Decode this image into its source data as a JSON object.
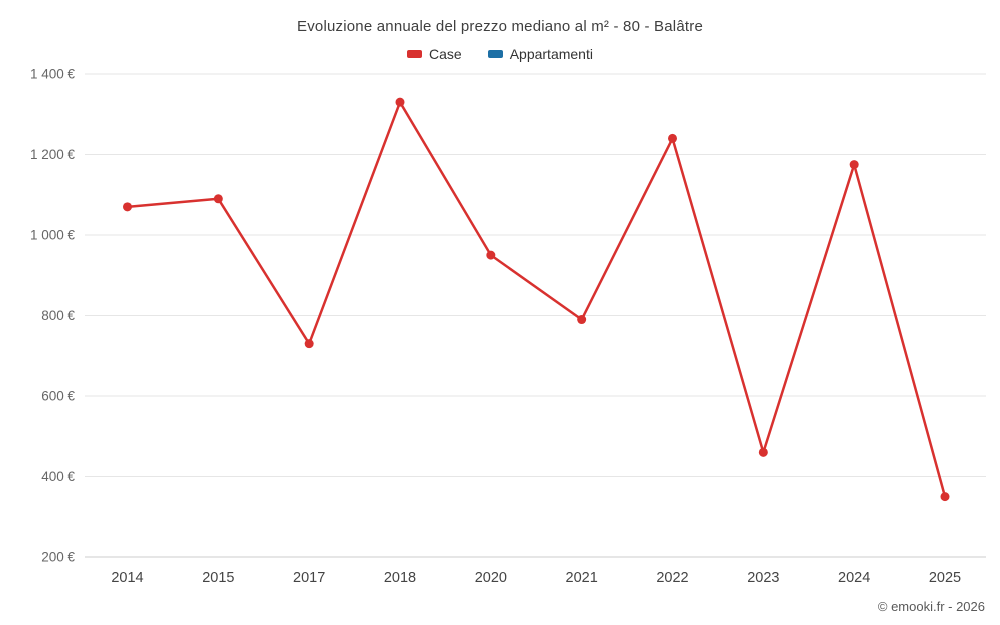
{
  "title": "Evoluzione annuale del prezzo mediano al m² - 80 - Balâtre",
  "legend": [
    {
      "label": "Case",
      "color": "#d8312f"
    },
    {
      "label": "Appartamenti",
      "color": "#1d6fa5"
    }
  ],
  "copyright": "© emooki.fr - 2026",
  "chart_data": {
    "type": "line",
    "title": "Evoluzione annuale del prezzo mediano al m² - 80 - Balâtre",
    "categories": [
      "2014",
      "2015",
      "2017",
      "2018",
      "2020",
      "2021",
      "2022",
      "2023",
      "2024",
      "2025"
    ],
    "series": [
      {
        "name": "Case",
        "color": "#d8312f",
        "values": [
          1070,
          1090,
          730,
          1330,
          950,
          790,
          1240,
          460,
          1175,
          350
        ]
      },
      {
        "name": "Appartamenti",
        "color": "#1d6fa5",
        "values": []
      }
    ],
    "ylim": [
      200,
      1400
    ],
    "ytick_step": 200,
    "ytick_labels": [
      "200 €",
      "400 €",
      "600 €",
      "800 €",
      "1 000 €",
      "1 200 €",
      "1 400 €"
    ],
    "ylabel": "",
    "xlabel": "",
    "grid": "horizontal",
    "legend_position": "top",
    "marker_radius": 4.5,
    "line_width": 2.5,
    "grid_color": "#e6e6e6",
    "axis_color": "#cccccc"
  }
}
